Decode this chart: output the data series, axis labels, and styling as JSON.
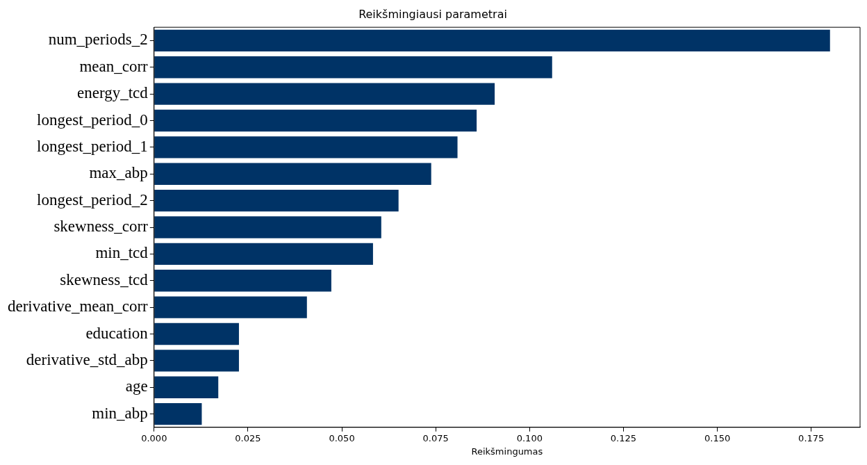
{
  "chart_data": {
    "type": "bar",
    "orientation": "horizontal",
    "title": "Reikšmingiausi parametrai",
    "xlabel": "Reikšmingumas",
    "categories": [
      "num_periods_2",
      "mean_corr",
      "energy_tcd",
      "longest_period_0",
      "longest_period_1",
      "max_abp",
      "longest_period_2",
      "skewness_corr",
      "min_tcd",
      "skewness_tcd",
      "derivative_mean_corr",
      "education",
      "derivative_std_abp",
      "age",
      "min_abp"
    ],
    "values": [
      0.18,
      0.106,
      0.0907,
      0.0859,
      0.0808,
      0.0738,
      0.0651,
      0.0605,
      0.0583,
      0.0472,
      0.0407,
      0.0226,
      0.0226,
      0.0171,
      0.0127
    ],
    "color": "#003366",
    "xlim": [
      0,
      0.188
    ],
    "xticks": [
      {
        "value": 0,
        "label": "0.000"
      },
      {
        "value": 0.025,
        "label": "0.025"
      },
      {
        "value": 0.05,
        "label": "0.050"
      },
      {
        "value": 0.075,
        "label": "0.075"
      },
      {
        "value": 0.1,
        "label": "0.100"
      },
      {
        "value": 0.125,
        "label": "0.125"
      },
      {
        "value": 0.15,
        "label": "0.150"
      },
      {
        "value": 0.175,
        "label": "0.175"
      }
    ],
    "grid": false,
    "legend": false
  }
}
